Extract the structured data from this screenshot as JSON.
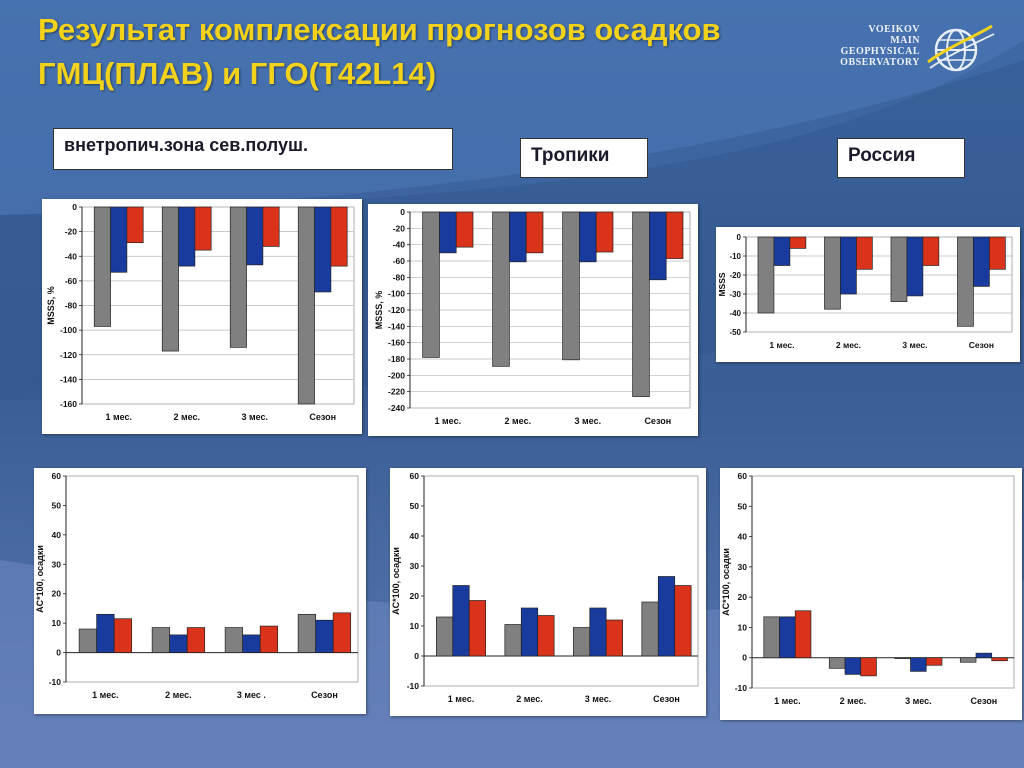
{
  "title": {
    "line1": "Результат комплексации прогнозов осадков",
    "line2": "ГМЦ(ПЛАВ) и  ГГО(Т42L14)"
  },
  "logo": {
    "lines": [
      "VOEIKOV",
      "MAIN",
      "GEOPHYSICAL",
      "OBSERVATORY"
    ],
    "icon": "globe-logo-icon"
  },
  "regions": [
    "внетропич.зона сев.полуш.",
    "Тропики",
    "Россия"
  ],
  "colors": {
    "series_gray": "#808080",
    "series_blue": "#1a3b9e",
    "series_red": "#d9341b",
    "title": "#f3d21c",
    "background": "#3f5f93"
  },
  "chart_data": [
    {
      "type": "bar",
      "ylabel": "MSSS, %",
      "categories": [
        "1 мес.",
        "2 мес.",
        "3 мес.",
        "Сезон"
      ],
      "ylim": [
        -160,
        0
      ],
      "yticks": [
        0,
        -20,
        -40,
        -60,
        -80,
        -100,
        -120,
        -140,
        -160
      ],
      "grid": true,
      "series": [
        {
          "values": [
            -97,
            -117,
            -114,
            -160
          ]
        },
        {
          "values": [
            -53,
            -48,
            -47,
            -69
          ]
        },
        {
          "values": [
            -29,
            -35,
            -32,
            -48
          ]
        }
      ]
    },
    {
      "type": "bar",
      "ylabel": "MSSS, %",
      "categories": [
        "1 мес.",
        "2 мес.",
        "3 мес.",
        "Сезон"
      ],
      "ylim": [
        -240,
        0
      ],
      "yticks": [
        0,
        -20,
        -40,
        -60,
        -80,
        -100,
        -120,
        -140,
        -160,
        -180,
        -200,
        -220,
        -240
      ],
      "grid": true,
      "series": [
        {
          "values": [
            -178,
            -189,
            -181,
            -226
          ]
        },
        {
          "values": [
            -50,
            -61,
            -61,
            -83
          ]
        },
        {
          "values": [
            -43,
            -50,
            -49,
            -57
          ]
        }
      ]
    },
    {
      "type": "bar",
      "ylabel": "MSSS",
      "categories": [
        "1 мес.",
        "2 мес.",
        "3 мес.",
        "Сезон"
      ],
      "ylim": [
        -50,
        0
      ],
      "yticks": [
        0,
        -10,
        -20,
        -30,
        -40,
        -50
      ],
      "grid": true,
      "series": [
        {
          "values": [
            -40,
            -38,
            -34,
            -47
          ]
        },
        {
          "values": [
            -15,
            -30,
            -31,
            -26
          ]
        },
        {
          "values": [
            -6,
            -17,
            -15,
            -17
          ]
        }
      ]
    },
    {
      "type": "bar",
      "ylabel": "AC*100, осадки",
      "categories": [
        "1 мес.",
        "2 мес.",
        "3 мес .",
        "Сезон"
      ],
      "ylim": [
        -10,
        60
      ],
      "yticks": [
        60,
        50,
        40,
        30,
        20,
        10,
        0,
        -10
      ],
      "grid": false,
      "series": [
        {
          "values": [
            8,
            8.5,
            8.5,
            13
          ]
        },
        {
          "values": [
            13,
            6,
            6,
            11
          ]
        },
        {
          "values": [
            11.5,
            8.5,
            9,
            13.5
          ]
        }
      ]
    },
    {
      "type": "bar",
      "ylabel": "AC*100, осадки",
      "categories": [
        "1 мес.",
        "2 мес.",
        "3 мес.",
        "Сезон"
      ],
      "ylim": [
        -10,
        60
      ],
      "yticks": [
        60,
        50,
        40,
        30,
        20,
        10,
        0,
        -10
      ],
      "grid": false,
      "series": [
        {
          "values": [
            13,
            10.5,
            9.5,
            18
          ]
        },
        {
          "values": [
            23.5,
            16,
            16,
            26.5
          ]
        },
        {
          "values": [
            18.5,
            13.5,
            12,
            23.5
          ]
        }
      ]
    },
    {
      "type": "bar",
      "ylabel": "AC*100, осадки",
      "categories": [
        "1 мес.",
        "2 мес.",
        "3 мес.",
        "Сезон"
      ],
      "ylim": [
        -10,
        60
      ],
      "yticks": [
        60,
        50,
        40,
        30,
        20,
        10,
        0,
        -10
      ],
      "grid": false,
      "series": [
        {
          "values": [
            13.5,
            -3.5,
            -0.3,
            -1.5
          ]
        },
        {
          "values": [
            13.5,
            -5.5,
            -4.5,
            1.5
          ]
        },
        {
          "values": [
            15.5,
            -6,
            -2.5,
            -1
          ]
        }
      ]
    }
  ]
}
